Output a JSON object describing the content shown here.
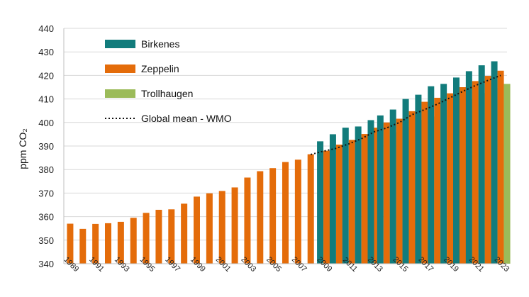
{
  "chart_data": {
    "type": "bar",
    "title": "",
    "xlabel": "",
    "ylabel": "ppm CO₂",
    "ylim": [
      340,
      440
    ],
    "yticks": [
      340,
      350,
      360,
      370,
      380,
      390,
      400,
      410,
      420,
      430,
      440
    ],
    "grid": "horizontal",
    "legend_position": "top-left",
    "categories": [
      "1989",
      "1990",
      "1991",
      "1992",
      "1993",
      "1994",
      "1995",
      "1996",
      "1997",
      "1998",
      "1999",
      "2000",
      "2001",
      "2002",
      "2003",
      "2004",
      "2005",
      "2006",
      "2007",
      "2008",
      "2009",
      "2010",
      "2011",
      "2012",
      "2013",
      "2014",
      "2015",
      "2016",
      "2017",
      "2018",
      "2019",
      "2020",
      "2021",
      "2022",
      "2023"
    ],
    "xtick_labels": [
      "1989",
      "1991",
      "1993",
      "1995",
      "1997",
      "1999",
      "2001",
      "2003",
      "2005",
      "2007",
      "2009",
      "2011",
      "2013",
      "2015",
      "2017",
      "2019",
      "2021",
      "2023"
    ],
    "series": [
      {
        "name": "Birkenes",
        "color": "#127C7C",
        "values": [
          null,
          null,
          null,
          null,
          null,
          null,
          null,
          null,
          null,
          null,
          null,
          null,
          null,
          null,
          null,
          null,
          null,
          null,
          null,
          null,
          392.0,
          395.0,
          397.8,
          398.3,
          401.0,
          403.0,
          405.5,
          410.0,
          411.8,
          415.4,
          416.4,
          419.1,
          421.8,
          424.3,
          426.0
        ]
      },
      {
        "name": "Zeppelin",
        "color": "#E46C0A",
        "values": [
          357.0,
          354.8,
          356.9,
          357.2,
          357.8,
          359.5,
          361.6,
          362.9,
          363.1,
          365.5,
          368.5,
          369.9,
          370.9,
          372.4,
          376.6,
          379.3,
          380.6,
          383.2,
          384.2,
          386.5,
          388.0,
          390.6,
          392.6,
          395.1,
          397.8,
          400.0,
          401.6,
          404.8,
          408.8,
          410.5,
          412.4,
          415.0,
          417.6,
          419.8,
          422.0
        ]
      },
      {
        "name": "Trollhaugen",
        "color": "#9BBB59",
        "values": [
          null,
          null,
          null,
          null,
          null,
          null,
          null,
          null,
          null,
          null,
          null,
          null,
          null,
          null,
          null,
          null,
          null,
          null,
          null,
          null,
          null,
          null,
          null,
          null,
          null,
          395.8,
          398.1,
          401.1,
          402.5,
          405.4,
          407.6,
          410.0,
          412.5,
          414.7,
          416.4
        ]
      },
      {
        "name": "Global mean - WMO",
        "color": "#111111",
        "style": "dotted-line",
        "values": [
          null,
          null,
          null,
          null,
          null,
          null,
          null,
          null,
          null,
          null,
          null,
          null,
          null,
          null,
          null,
          null,
          null,
          null,
          null,
          386.4,
          387.8,
          389.0,
          390.9,
          393.1,
          396.0,
          397.7,
          400.0,
          403.3,
          405.5,
          407.8,
          410.5,
          413.2,
          415.7,
          417.9,
          420.0
        ]
      }
    ]
  }
}
